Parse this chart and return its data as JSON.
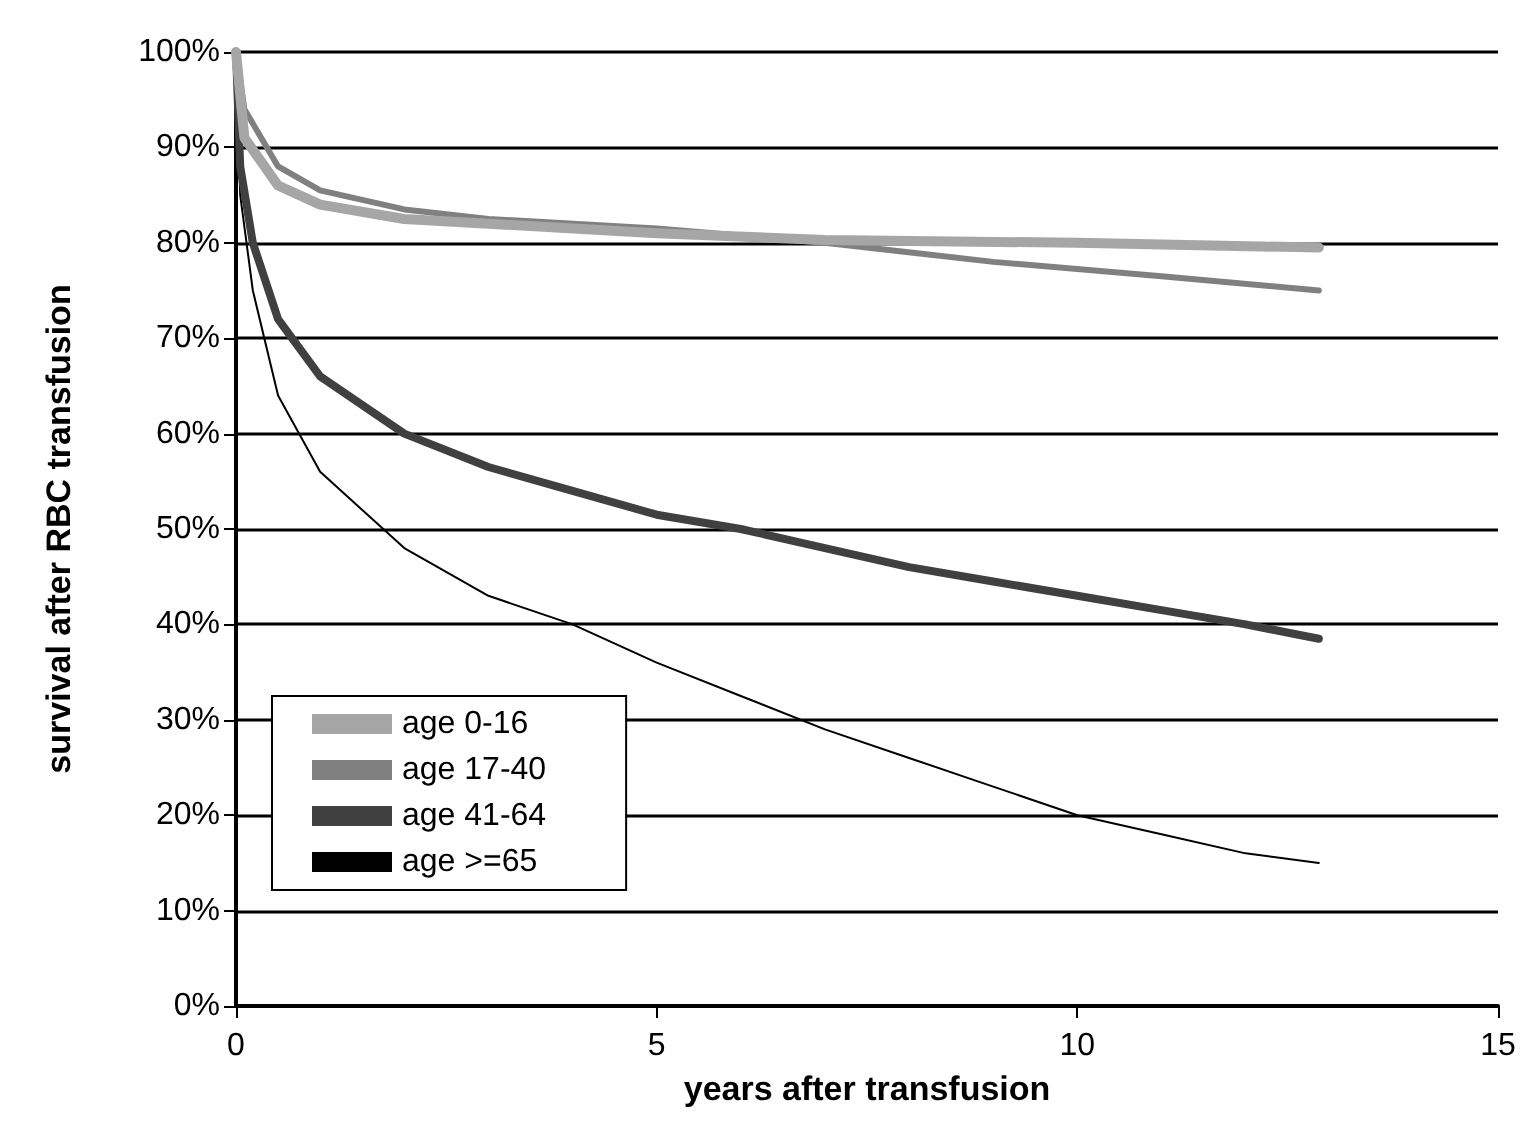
{
  "chart_data": {
    "type": "line",
    "xlabel": "years after transfusion",
    "ylabel": "survival after RBC transfusion",
    "xlim": [
      0,
      15
    ],
    "xticks": [
      0,
      5,
      10,
      15
    ],
    "ylim": [
      0,
      100
    ],
    "yticks": [
      {
        "value": 0,
        "label": "0%"
      },
      {
        "value": 10,
        "label": "10%"
      },
      {
        "value": 20,
        "label": "20%"
      },
      {
        "value": 30,
        "label": "30%"
      },
      {
        "value": 40,
        "label": "40%"
      },
      {
        "value": 50,
        "label": "50%"
      },
      {
        "value": 60,
        "label": "60%"
      },
      {
        "value": 70,
        "label": "70%"
      },
      {
        "value": 80,
        "label": "80%"
      },
      {
        "value": 90,
        "label": "90%"
      },
      {
        "value": 100,
        "label": "100%"
      }
    ],
    "grid": "y",
    "legend": "bottom left",
    "marker": "none",
    "line_style": "solid",
    "series": [
      {
        "name": "age 0-16",
        "color": "#a6a6a6",
        "x": [
          0,
          0.1,
          0.5,
          1,
          2,
          3,
          5,
          7,
          10,
          12.87
        ],
        "values": [
          100,
          91,
          86,
          84,
          82.5,
          82,
          81,
          80.3,
          80,
          79.5
        ]
      },
      {
        "name": "age 17-40",
        "color": "#808080",
        "x": [
          0,
          0.1,
          0.5,
          1,
          2,
          3,
          5,
          7,
          9,
          11,
          12.87
        ],
        "values": [
          100,
          94,
          88,
          85.5,
          83.5,
          82.5,
          81.5,
          80,
          78,
          76.5,
          75
        ]
      },
      {
        "name": "age 41-64",
        "color": "#404040",
        "x": [
          0,
          0.05,
          0.2,
          0.5,
          1,
          2,
          3,
          4,
          5,
          6,
          7,
          8,
          9,
          10,
          11,
          12,
          12.87
        ],
        "values": [
          100,
          88,
          80,
          72,
          66,
          60,
          56.5,
          54,
          51.5,
          50,
          48,
          46,
          44.5,
          43,
          41.5,
          40,
          38.5
        ]
      },
      {
        "name": "age >=65",
        "color": "#000000",
        "x": [
          0,
          0.05,
          0.2,
          0.5,
          1,
          2,
          3,
          4,
          5,
          6,
          7,
          8,
          9,
          10,
          11,
          12,
          12.87
        ],
        "values": [
          100,
          85,
          75,
          64,
          56,
          48,
          43,
          40,
          36,
          32.5,
          29,
          26,
          23,
          20,
          18,
          16,
          15
        ]
      }
    ]
  }
}
